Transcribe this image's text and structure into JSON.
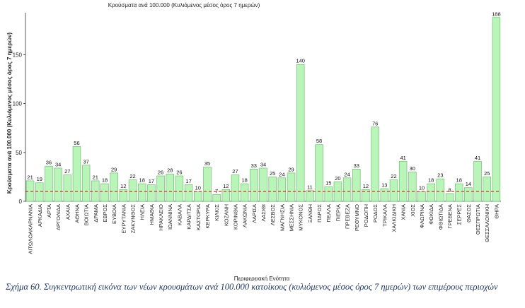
{
  "chart_data": {
    "type": "bar",
    "title": "Κρούσματα ανά 100.000 (Κυλιόμενος μέσος όρος 7 ημερών)",
    "xlabel": "Περιφερειακή Ενότητα",
    "ylabel": "Κρούσματα ανά 100.000 (Κυλιόμενος μέσος όρος 7 ημερών)",
    "ylim": [
      0,
      190
    ],
    "yticks": [
      0,
      50,
      100,
      150
    ],
    "threshold": 10,
    "grid": false,
    "categories": [
      "ΑΙΤΩΛΟΑΚΑΡΝΑΝΙΑ",
      "ΑΡΚΑΔΙΑ",
      "ΑΡΤΑ",
      "ΑΡΓΟΛΙΔΑ",
      "ΑΧΑΙΑ",
      "ΑΘΗΝΑ",
      "ΒΟΙΩΤΙΑ",
      "ΔΡΑΜΑ",
      "ΕΒΡΟΣ",
      "ΕΥΒΟΙΑ",
      "ΕΥΡΥΤΑΝΙΑ",
      "ΖΑΚΥΝΘΟΣ",
      "ΗΛΕΙΑ",
      "ΗΜΑΘΙΑ",
      "ΗΡΑΚΛΕΙΟ",
      "ΙΩΑΝΝΙΝΑ",
      "ΚΑΒΑΛΑ",
      "ΚΑΡΔΙΤΣΑ",
      "ΚΑΣΤΟΡΙΑ",
      "ΚΕΡΚΥΡΑ",
      "ΚΙΛΚΙΣ",
      "ΚΟΖΑΝΗ",
      "ΚΟΡΙΝΘΙΑ",
      "ΛΑΚΩΝΙΑ",
      "ΛΑΡΙΣΑ",
      "ΛΑΣΙΘΙ",
      "ΛΕΣΒΟΣ",
      "ΜΑΓΝΗΣΙΑ",
      "ΜΕΣΣΗΝΙΑ",
      "ΜΥΚΟΝΟΣ",
      "ΞΑΝΘΗ",
      "ΠΑΡΟΣ",
      "ΠΕΛΛΑ",
      "ΠΙΕΡΙΑ",
      "ΠΡΕΒΕΖΑ",
      "ΡΕΘΥΜΝΟ",
      "ΡΟΔΟΠΗ",
      "ΡΟΔΟΣ",
      "ΤΡΙΚΑΛΑ",
      "ΧΑΛΚΙΔΙΚΗ",
      "ΧΑΝΙΑ",
      "ΧΙΟΣ",
      "ΦΛΩΡΙΝΑ",
      "ΦΩΚΙΔΑ",
      "ΦΘΙΩΤΙΔΑ",
      "ΓΡΕΒΕΝΑ",
      "ΣΕΡΡΕΣ",
      "ΘΑΣΟΣ",
      "ΘΕΣΠΡΩΤΙΑ",
      "ΘΕΣΣΑΛΟΝΙΚΗ",
      "ΘΗΡΑ"
    ],
    "values": [
      21,
      19,
      36,
      34,
      27,
      56,
      37,
      21,
      18,
      29,
      12,
      22,
      18,
      17,
      26,
      28,
      26,
      17,
      10,
      35,
      7,
      12,
      27,
      18,
      33,
      34,
      25,
      24,
      29,
      140,
      11,
      58,
      15,
      20,
      24,
      33,
      12,
      76,
      13,
      22,
      41,
      30,
      10,
      18,
      23,
      8,
      18,
      14,
      41,
      25,
      188
    ],
    "bar_color": "#b9f5b9",
    "bar_edge_color": "#6fbf6f",
    "threshold_color": "#e0302a"
  },
  "caption": "Σχήμα 60. Συγκεντρωτική εικόνα των νέων κρουσμάτων ανά 100.000 κατοίκους (κυλιόμενος μέσος όρος 7 ημερών) των επιμέρους περιοχών"
}
